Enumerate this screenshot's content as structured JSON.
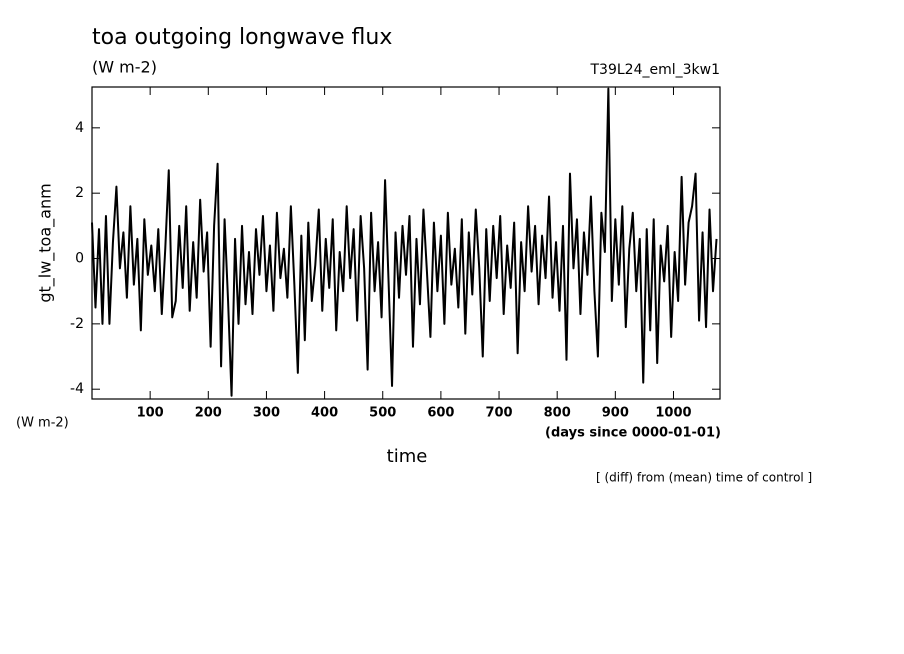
{
  "chart_data": {
    "type": "line",
    "title": "toa outgoing longwave flux",
    "subtitle": "(W m-2)",
    "run_label": "T39L24_eml_3kw1",
    "y_label": "gt_lw_toa_anm",
    "y_unit": "(W m-2)",
    "x_label": "time",
    "x_unit": "(days since 0000-01-01)",
    "note": "[ (diff) from (mean) time of control ]",
    "xlim": [
      0,
      1080
    ],
    "ylim": [
      -4.3,
      5.25
    ],
    "xticks": [
      100,
      200,
      300,
      400,
      500,
      600,
      700,
      800,
      900,
      1000
    ],
    "yticks": [
      -4,
      -2,
      0,
      2,
      4
    ],
    "x": [
      0,
      6,
      12,
      18,
      24,
      30,
      36,
      42,
      48,
      54,
      60,
      66,
      72,
      78,
      84,
      90,
      96,
      102,
      108,
      114,
      120,
      126,
      132,
      138,
      144,
      150,
      156,
      162,
      168,
      174,
      180,
      186,
      192,
      198,
      204,
      210,
      216,
      222,
      228,
      234,
      240,
      246,
      252,
      258,
      264,
      270,
      276,
      282,
      288,
      294,
      300,
      306,
      312,
      318,
      324,
      330,
      336,
      342,
      348,
      354,
      360,
      366,
      372,
      378,
      384,
      390,
      396,
      402,
      408,
      414,
      420,
      426,
      432,
      438,
      444,
      450,
      456,
      462,
      468,
      474,
      480,
      486,
      492,
      498,
      504,
      510,
      516,
      522,
      528,
      534,
      540,
      546,
      552,
      558,
      564,
      570,
      576,
      582,
      588,
      594,
      600,
      606,
      612,
      618,
      624,
      630,
      636,
      642,
      648,
      654,
      660,
      666,
      672,
      678,
      684,
      690,
      696,
      702,
      708,
      714,
      720,
      726,
      732,
      738,
      744,
      750,
      756,
      762,
      768,
      774,
      780,
      786,
      792,
      798,
      804,
      810,
      816,
      822,
      828,
      834,
      840,
      846,
      852,
      858,
      864,
      870,
      876,
      882,
      888,
      894,
      900,
      906,
      912,
      918,
      924,
      930,
      936,
      942,
      948,
      954,
      960,
      966,
      972,
      978,
      984,
      990,
      996,
      1002,
      1008,
      1014,
      1020,
      1026,
      1032,
      1038,
      1044,
      1050,
      1056,
      1062,
      1068,
      1074
    ],
    "series": [
      {
        "color": "#000000",
        "values": [
          1.1,
          -1.5,
          0.9,
          -2.0,
          1.3,
          -2.0,
          0.5,
          2.2,
          -0.3,
          0.8,
          -1.2,
          1.6,
          -0.8,
          0.6,
          -2.2,
          1.2,
          -0.5,
          0.4,
          -1.0,
          0.9,
          -1.7,
          0.3,
          2.7,
          -1.8,
          -1.3,
          1.0,
          -0.9,
          1.6,
          -1.6,
          0.5,
          -1.2,
          1.8,
          -0.4,
          0.8,
          -2.7,
          1.0,
          2.9,
          -3.3,
          1.2,
          -1.3,
          -4.2,
          0.6,
          -2.0,
          1.0,
          -1.4,
          0.2,
          -1.7,
          0.9,
          -0.5,
          1.3,
          -1.0,
          0.4,
          -1.6,
          1.4,
          -0.6,
          0.3,
          -1.2,
          1.6,
          -0.8,
          -3.5,
          0.7,
          -2.5,
          1.1,
          -1.3,
          -0.2,
          1.5,
          -1.6,
          0.6,
          -0.9,
          1.2,
          -2.2,
          0.2,
          -1.0,
          1.6,
          -0.6,
          0.9,
          -1.9,
          1.3,
          -0.3,
          -3.4,
          1.4,
          -1.0,
          0.5,
          -1.8,
          2.4,
          -0.7,
          -3.9,
          0.8,
          -1.2,
          1.0,
          -0.5,
          1.3,
          -2.7,
          0.6,
          -1.4,
          1.5,
          -0.4,
          -2.4,
          1.1,
          -1.0,
          0.7,
          -2.0,
          1.4,
          -0.8,
          0.3,
          -1.5,
          1.2,
          -2.3,
          0.8,
          -1.1,
          1.5,
          -0.3,
          -3.0,
          0.9,
          -1.3,
          1.0,
          -0.6,
          1.3,
          -1.7,
          0.4,
          -0.9,
          1.1,
          -2.9,
          0.5,
          -1.0,
          1.6,
          -0.4,
          1.0,
          -1.4,
          0.7,
          -0.6,
          1.9,
          -1.2,
          0.5,
          -1.6,
          1.0,
          -3.1,
          2.6,
          -0.3,
          1.2,
          -1.7,
          0.8,
          -0.5,
          1.9,
          -1.0,
          -3.0,
          1.4,
          0.2,
          5.2,
          -1.3,
          1.2,
          -0.8,
          1.6,
          -2.1,
          0.3,
          1.4,
          -1.0,
          0.6,
          -3.8,
          0.9,
          -2.2,
          1.2,
          -3.2,
          0.4,
          -0.7,
          1.0,
          -2.4,
          0.2,
          -1.3,
          2.5,
          -0.8,
          1.1,
          1.6,
          2.6,
          -1.9,
          0.8,
          -2.1,
          1.5,
          -1.0,
          0.6
        ]
      }
    ]
  }
}
